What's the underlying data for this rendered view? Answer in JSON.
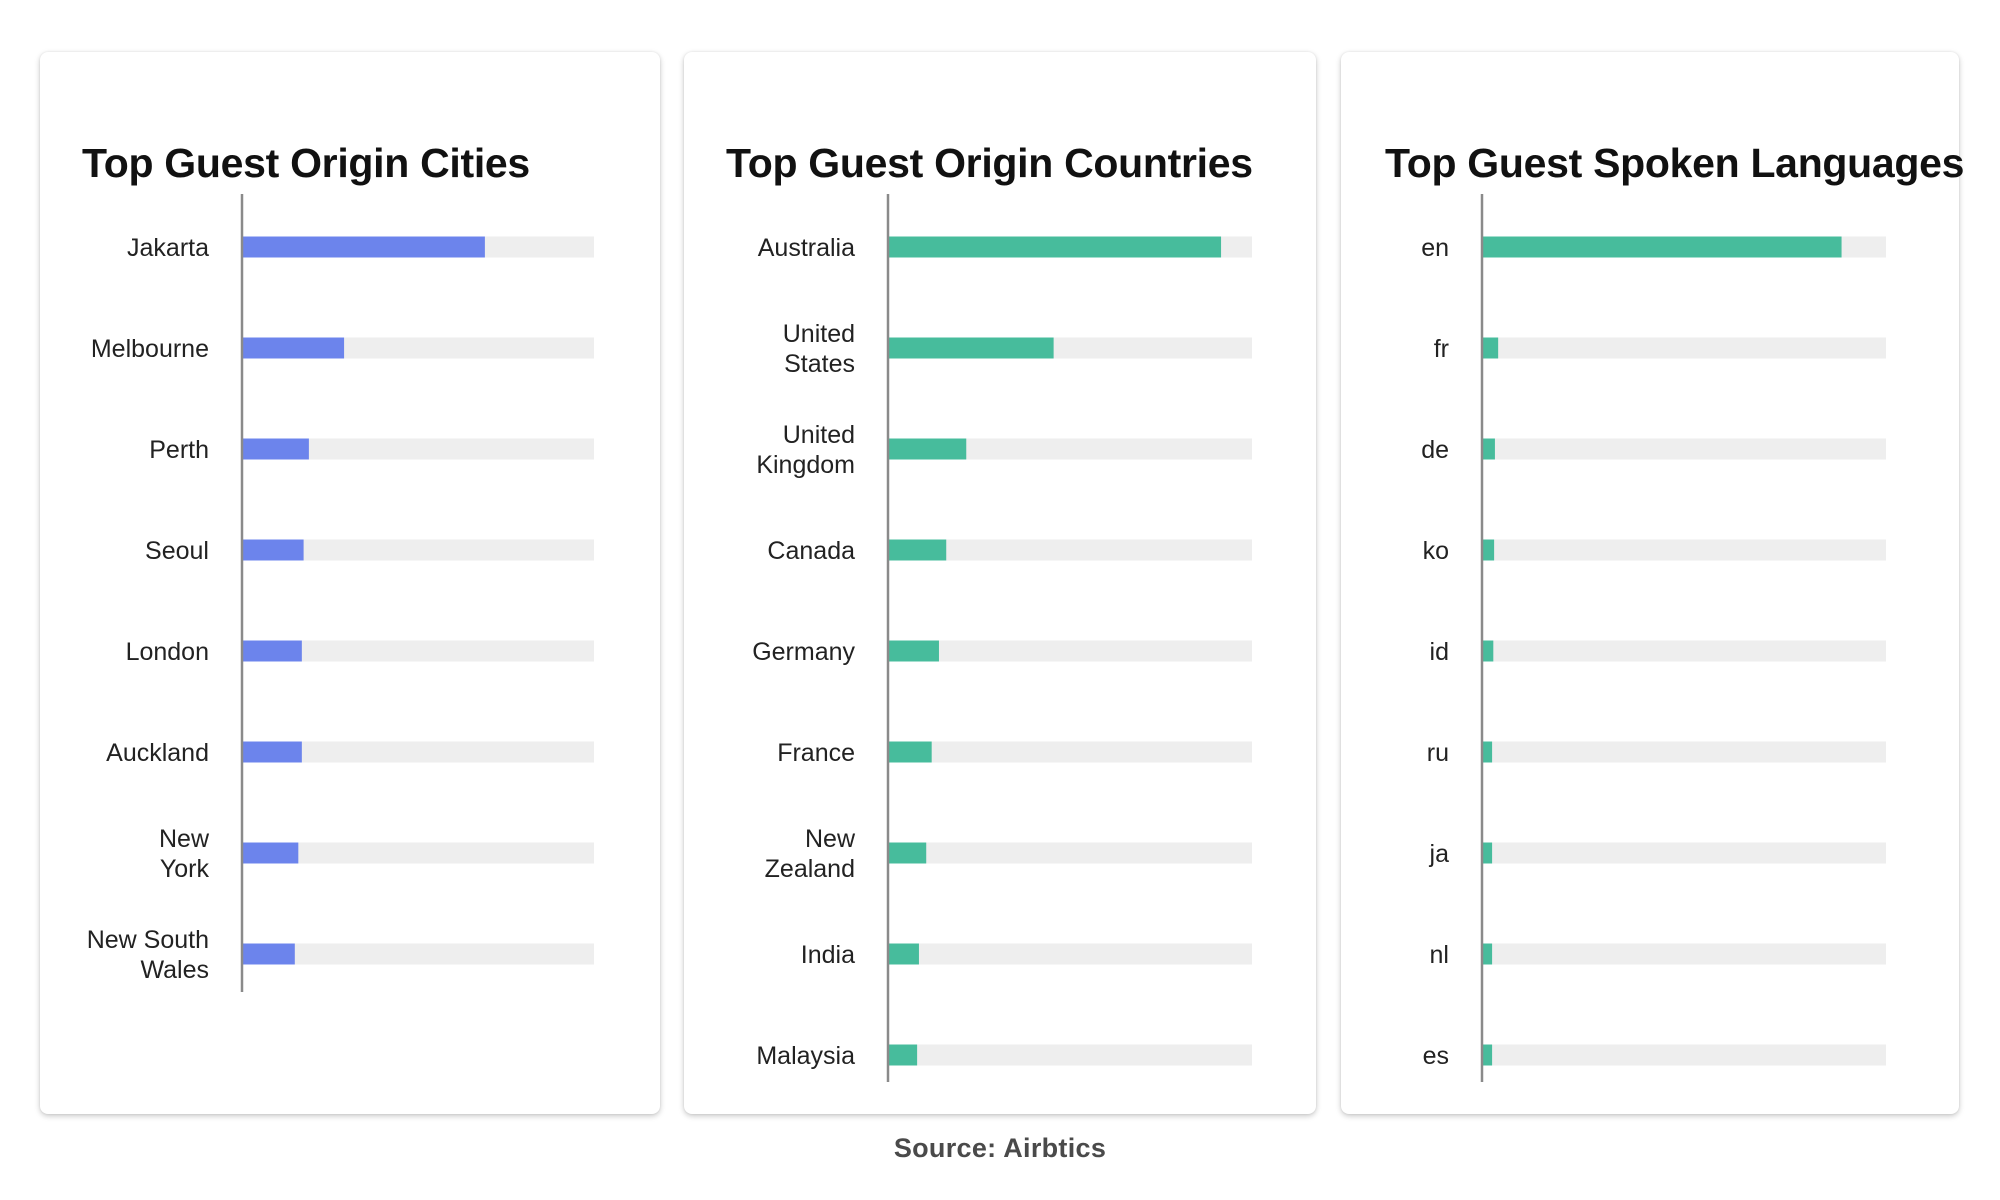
{
  "source": {
    "label": "Source: Airbtics"
  },
  "colors": {
    "cities_bar": "#6c84ec",
    "countries_bar": "#47bc9c",
    "languages_bar": "#47bc9c",
    "track": "#eeeeee",
    "axis": "#8a8a8a"
  },
  "chart_data": [
    {
      "type": "bar",
      "orientation": "horizontal",
      "title": "Top Guest Origin Cities",
      "xlabel": "",
      "ylabel": "",
      "xlim": [
        0,
        100
      ],
      "grid": false,
      "categories": [
        "Jakarta",
        "Melbourne",
        "Perth",
        "Seoul",
        "London",
        "Auckland",
        "New York",
        "New South Wales"
      ],
      "values": [
        69,
        29,
        19,
        17.5,
        17,
        17,
        16,
        15
      ]
    },
    {
      "type": "bar",
      "orientation": "horizontal",
      "title": "Top Guest Origin Countries",
      "xlabel": "",
      "ylabel": "",
      "xlim": [
        0,
        100
      ],
      "grid": false,
      "categories": [
        "Australia",
        "United States",
        "United Kingdom",
        "Canada",
        "Germany",
        "France",
        "New Zealand",
        "India",
        "Malaysia"
      ],
      "values": [
        91.5,
        45.5,
        21.5,
        16,
        14,
        12,
        10.5,
        8.5,
        8
      ]
    },
    {
      "type": "bar",
      "orientation": "horizontal",
      "title": "Top Guest Spoken Languages",
      "xlabel": "",
      "ylabel": "",
      "xlim": [
        0,
        100
      ],
      "grid": false,
      "categories": [
        "en",
        "fr",
        "de",
        "ko",
        "id",
        "ru",
        "ja",
        "nl",
        "es"
      ],
      "values": [
        89,
        4,
        3.2,
        3,
        2.8,
        2.5,
        2.5,
        2.5,
        2.5
      ]
    }
  ]
}
